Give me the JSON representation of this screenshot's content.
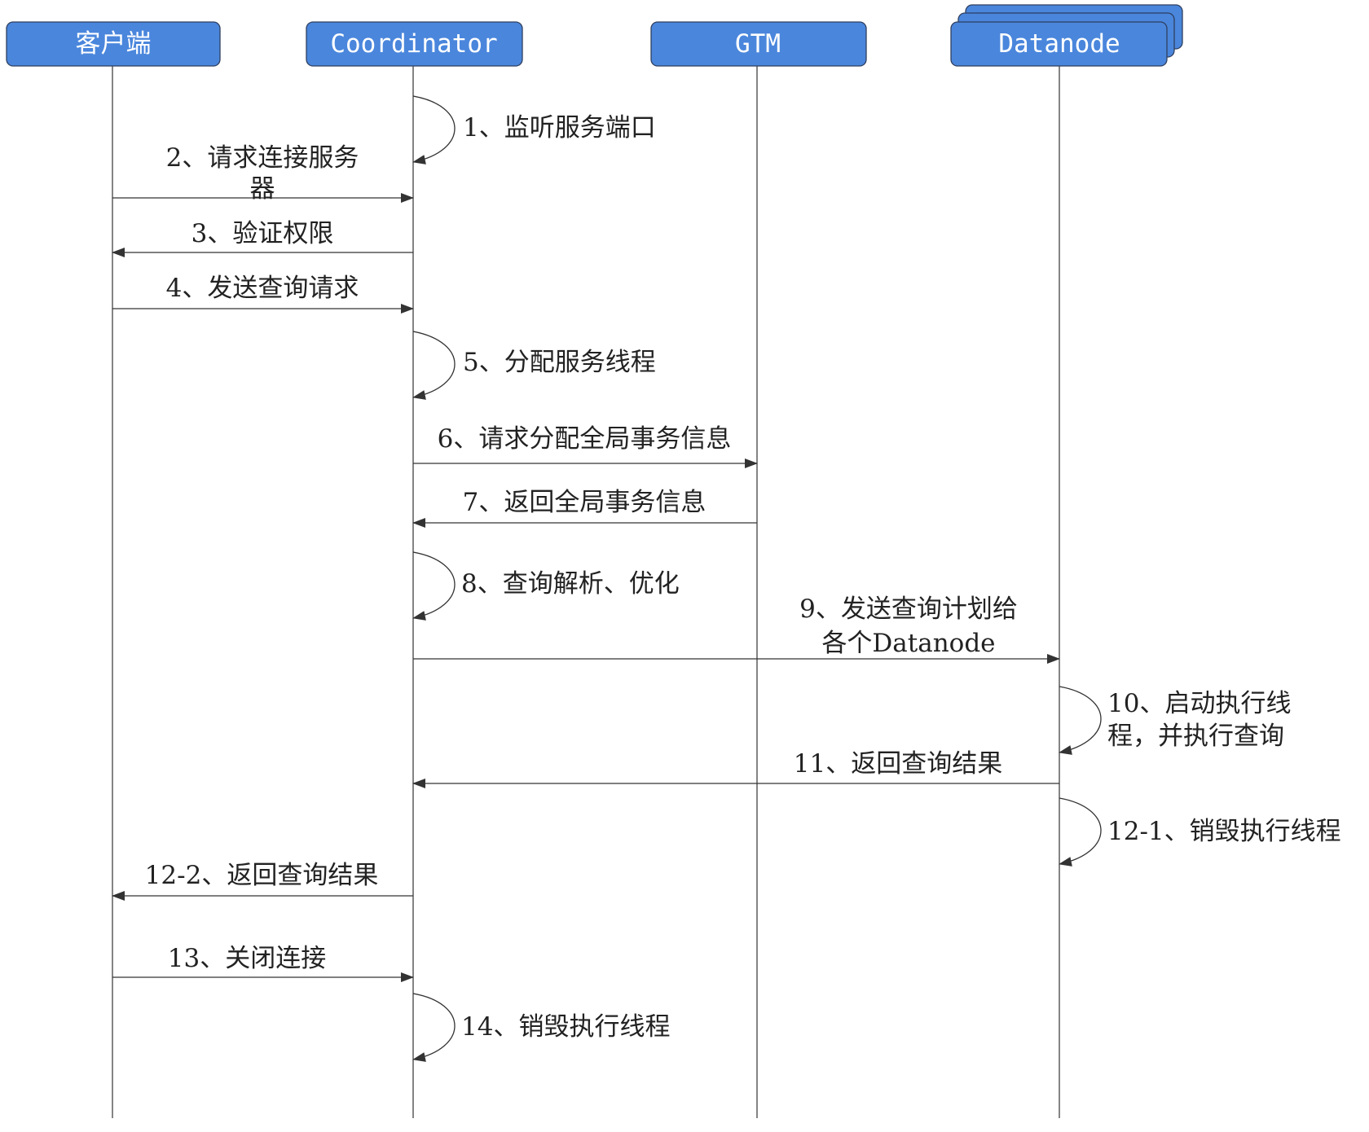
{
  "colors": {
    "participant_fill": "#4a86dc",
    "line": "#333333"
  },
  "participants": [
    "客户端",
    "Coordinator",
    "GTM",
    "Datanode"
  ],
  "messages": [
    {
      "n": "1",
      "text": "1、监听服务端口",
      "from": "Coordinator",
      "to": "Coordinator"
    },
    {
      "n": "2",
      "lines": [
        "2、请求连接服务",
        "器"
      ],
      "from": "客户端",
      "to": "Coordinator"
    },
    {
      "n": "3",
      "text": "3、验证权限",
      "from": "Coordinator",
      "to": "客户端"
    },
    {
      "n": "4",
      "text": "4、发送查询请求",
      "from": "客户端",
      "to": "Coordinator"
    },
    {
      "n": "5",
      "text": "5、分配服务线程",
      "from": "Coordinator",
      "to": "Coordinator"
    },
    {
      "n": "6",
      "text": "6、请求分配全局事务信息",
      "from": "Coordinator",
      "to": "GTM"
    },
    {
      "n": "7",
      "text": "7、返回全局事务信息",
      "from": "GTM",
      "to": "Coordinator"
    },
    {
      "n": "8",
      "text": "8、查询解析、优化",
      "from": "Coordinator",
      "to": "Coordinator"
    },
    {
      "n": "9",
      "lines": [
        "9、发送查询计划给",
        "各个Datanode"
      ],
      "from": "Coordinator",
      "to": "Datanode"
    },
    {
      "n": "10",
      "lines": [
        "10、启动执行线",
        "程，并执行查询"
      ],
      "from": "Datanode",
      "to": "Datanode"
    },
    {
      "n": "11",
      "text": "11、返回查询结果",
      "from": "Datanode",
      "to": "Coordinator"
    },
    {
      "n": "12-1",
      "text": "12-1、销毁执行线程",
      "from": "Datanode",
      "to": "Datanode"
    },
    {
      "n": "12-2",
      "text": "12-2、返回查询结果",
      "from": "Coordinator",
      "to": "客户端"
    },
    {
      "n": "13",
      "text": "13、关闭连接",
      "from": "客户端",
      "to": "Coordinator"
    },
    {
      "n": "14",
      "text": "14、销毁执行线程",
      "from": "Coordinator",
      "to": "Coordinator"
    }
  ]
}
